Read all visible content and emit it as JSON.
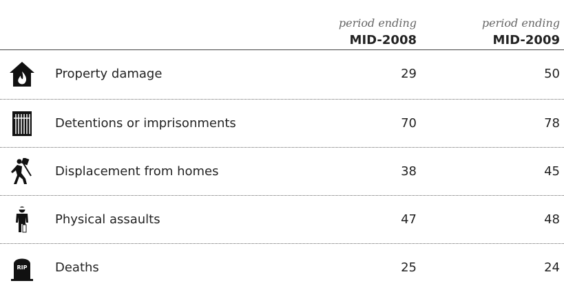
{
  "header": {
    "columns": [
      {
        "caption": "period ending",
        "period": "MID-2008"
      },
      {
        "caption": "period ending",
        "period": "MID-2009"
      }
    ]
  },
  "table": {
    "rows": [
      {
        "label": "Property damage",
        "values": [
          "29",
          "50"
        ]
      },
      {
        "label": "Detentions or imprisonments",
        "values": [
          "70",
          "78"
        ]
      },
      {
        "label": "Displacement from homes",
        "values": [
          "38",
          "45"
        ]
      },
      {
        "label": "Physical assaults",
        "values": [
          "47",
          "48"
        ]
      },
      {
        "label": "Deaths",
        "values": [
          "25",
          "24"
        ],
        "icon_text": "RIP"
      }
    ]
  }
}
